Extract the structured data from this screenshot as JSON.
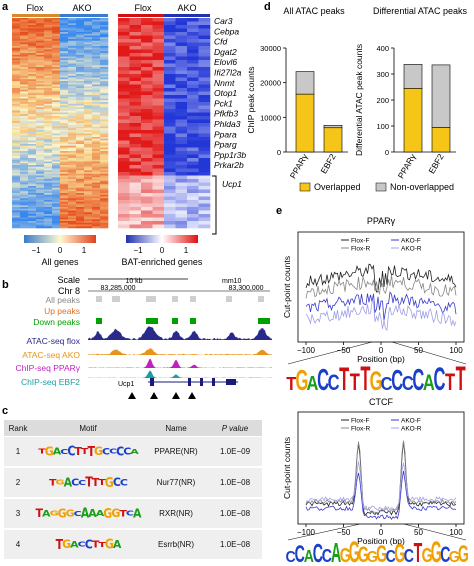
{
  "panels": {
    "a": "a",
    "b": "b",
    "c": "c",
    "d": "d",
    "e": "e"
  },
  "panel_a": {
    "left_groups": [
      "Flox",
      "AKO"
    ],
    "right_groups": [
      "Flox",
      "AKO"
    ],
    "genes": [
      "Car3",
      "Cebpa",
      "Cfd",
      "Dgat2",
      "Elovl6",
      "Ifi27l2a",
      "Nnmt",
      "Otop1",
      "Pck1",
      "Pfkfb3",
      "Phlda3",
      "Ppara",
      "Pparg",
      "Ppp1r3b",
      "Prkar2b",
      "Ucp1"
    ],
    "left_colorbar_title": "All genes",
    "right_colorbar_title": "BAT-enriched genes",
    "colorbar_ticks": [
      "−1",
      "0",
      "1"
    ],
    "colors": {
      "low": "#2b3a9e",
      "mid": "#ffffff",
      "high": "#d7191c",
      "left_low": "#7fb0e0",
      "left_high": "#f0a36a"
    }
  },
  "panel_b": {
    "scale_label": "Scale",
    "chr_label": "Chr 8",
    "scale_bar": "10 kb",
    "assembly": "mm10",
    "coord_left": "83,285,000",
    "coord_right": "83,300,000",
    "tracks": [
      {
        "label": "All peaks",
        "color": "#888888"
      },
      {
        "label": "Up peaks",
        "color": "#e07020"
      },
      {
        "label": "Down peaks",
        "color": "#00a000"
      },
      {
        "label": "ATAC-seq flox",
        "color": "#2a2a8a"
      },
      {
        "label": "ATAC-seq AKO",
        "color": "#e8941a"
      },
      {
        "label": "ChIP-seq PPARγ",
        "color": "#c020c0"
      },
      {
        "label": "ChIP-seq EBF2",
        "color": "#1aa0a0"
      }
    ],
    "gene_label": "Ucp1"
  },
  "panel_c": {
    "headers": [
      "Rank",
      "Motif",
      "Name",
      "P value"
    ],
    "rows": [
      {
        "rank": "1",
        "motif": "TGACCTTTGCCCCA",
        "name": "PPARE(NR)",
        "p": "1.0E−09"
      },
      {
        "rank": "2",
        "motif": "TGACCTTTGCC",
        "name": "Nur77(NR)",
        "p": "1.0E−08"
      },
      {
        "rank": "3",
        "motif": "TAGGGCAAAGGTCA",
        "name": "RXR(NR)",
        "p": "1.0E−08"
      },
      {
        "rank": "4",
        "motif": "TGACCTTGA",
        "name": "Esrrb(NR)",
        "p": "1.0E−08"
      }
    ]
  },
  "panel_d": {
    "chart_data": [
      {
        "type": "bar",
        "title": "All ATAC peaks",
        "ylabel": "ChIP peak counts",
        "categories": [
          "PPARγ",
          "EBF2"
        ],
        "series": [
          {
            "name": "Overlapped",
            "values": [
              16700,
              7000
            ]
          },
          {
            "name": "Non-overlapped",
            "values": [
              6500,
              700
            ]
          }
        ],
        "ylim": [
          0,
          30000
        ],
        "yticks": [
          "0",
          "10000",
          "20000",
          "30000"
        ]
      },
      {
        "type": "bar",
        "title": "Differential ATAC peaks",
        "ylabel": "Differential ATAC peak counts",
        "categories": [
          "PPARγ",
          "EBF2"
        ],
        "series": [
          {
            "name": "Overlapped",
            "values": [
              245,
              95
            ]
          },
          {
            "name": "Non-overlapped",
            "values": [
              92,
              240
            ]
          }
        ],
        "ylim": [
          0,
          400
        ],
        "yticks": [
          "0",
          "100",
          "200",
          "300",
          "400"
        ]
      }
    ],
    "legend": [
      "Overlapped",
      "Non-overlapped"
    ],
    "colors": {
      "overlapped": "#f5c518",
      "non": "#c8c8c8"
    }
  },
  "panel_e": {
    "chart_data": [
      {
        "type": "line",
        "title": "PPARγ",
        "xlabel": "Position (bp)",
        "ylabel": "Cut-point counts",
        "xticks": [
          "−100",
          "−50",
          "0",
          "50",
          "100"
        ],
        "xlim": [
          -100,
          100
        ],
        "series": [
          "Flox-F",
          "Flox-R",
          "AKO-F",
          "AKO-R"
        ]
      },
      {
        "type": "line",
        "title": "CTCF",
        "xlabel": "Position (bp)",
        "ylabel": "Cut-point counts",
        "xticks": [
          "−100",
          "−50",
          "0",
          "50",
          "100"
        ],
        "xlim": [
          -100,
          100
        ],
        "series": [
          "Flox-F",
          "Flox-R",
          "AKO-F",
          "AKO-R"
        ]
      }
    ],
    "motif_pparg": "TGACCTTTGCCCCACTT",
    "motif_ctcf": "CCACCAGGGGGCGCTGGCGG"
  }
}
